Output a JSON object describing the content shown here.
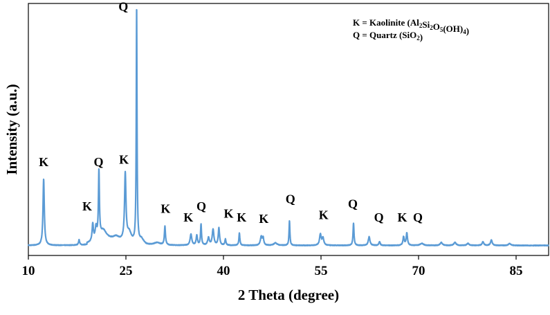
{
  "chart_data": {
    "type": "line",
    "title": "",
    "xlabel": "2 Theta (degree)",
    "ylabel": "Intensity (a.u.)",
    "xlim": [
      10,
      90
    ],
    "ylim": [
      0,
      100
    ],
    "x_ticks": [
      10,
      25,
      40,
      55,
      70,
      85
    ],
    "x_tick_labels": [
      "10",
      "25",
      "40",
      "55",
      "70",
      "85"
    ],
    "grid": false,
    "legend_position": "top-right",
    "legend": [
      {
        "text": "K = Kaolinite (Al2Si2O5(OH)4)",
        "parts": [
          {
            "t": "K = Kaolinite (Al"
          },
          {
            "t": "2",
            "sub": true
          },
          {
            "t": "Si"
          },
          {
            "t": "2",
            "sub": true
          },
          {
            "t": "O"
          },
          {
            "t": "5",
            "sub": true
          },
          {
            "t": "(OH)"
          },
          {
            "t": "4",
            "sub": true
          },
          {
            "t": ")"
          }
        ]
      },
      {
        "text": "Q = Quartz (SiO2)",
        "parts": [
          {
            "t": "Q = Quartz (SiO"
          },
          {
            "t": "2",
            "sub": true
          },
          {
            "t": ")"
          }
        ]
      }
    ],
    "line_color": "#5b9bd5",
    "baseline": 1.8,
    "peaks": [
      {
        "x": 12.35,
        "height": 27,
        "width": 0.12
      },
      {
        "x": 17.8,
        "height": 2.2,
        "width": 0.1
      },
      {
        "x": 19.9,
        "height": 7,
        "width": 0.12
      },
      {
        "x": 20.4,
        "height": 5,
        "width": 0.15
      },
      {
        "x": 20.85,
        "height": 27,
        "width": 0.09
      },
      {
        "x": 21.5,
        "height": 4,
        "width": 0.6
      },
      {
        "x": 23.5,
        "height": 1.3,
        "width": 0.5
      },
      {
        "x": 24.9,
        "height": 27,
        "width": 0.13
      },
      {
        "x": 25.5,
        "height": 4,
        "width": 0.4
      },
      {
        "x": 26.65,
        "height": 96,
        "width": 0.07
      },
      {
        "x": 27.4,
        "height": 2,
        "width": 0.4
      },
      {
        "x": 29.8,
        "height": 1,
        "width": 0.6
      },
      {
        "x": 31.0,
        "height": 7.5,
        "width": 0.1
      },
      {
        "x": 35.0,
        "height": 4.5,
        "width": 0.15
      },
      {
        "x": 35.9,
        "height": 4,
        "width": 0.12
      },
      {
        "x": 36.55,
        "height": 8.5,
        "width": 0.09
      },
      {
        "x": 37.7,
        "height": 3,
        "width": 0.15
      },
      {
        "x": 38.4,
        "height": 6.5,
        "width": 0.15
      },
      {
        "x": 39.3,
        "height": 7,
        "width": 0.12
      },
      {
        "x": 40.3,
        "height": 2.5,
        "width": 0.1
      },
      {
        "x": 42.45,
        "height": 5,
        "width": 0.09
      },
      {
        "x": 45.8,
        "height": 3.5,
        "width": 0.15
      },
      {
        "x": 46.1,
        "height": 3,
        "width": 0.12
      },
      {
        "x": 48.0,
        "height": 1,
        "width": 0.3
      },
      {
        "x": 50.15,
        "height": 10,
        "width": 0.08
      },
      {
        "x": 54.9,
        "height": 4.5,
        "width": 0.15
      },
      {
        "x": 55.3,
        "height": 3,
        "width": 0.15
      },
      {
        "x": 60.0,
        "height": 9,
        "width": 0.09
      },
      {
        "x": 62.4,
        "height": 3.5,
        "width": 0.15
      },
      {
        "x": 64.0,
        "height": 1.5,
        "width": 0.12
      },
      {
        "x": 67.7,
        "height": 3.5,
        "width": 0.12
      },
      {
        "x": 68.2,
        "height": 5,
        "width": 0.12
      },
      {
        "x": 70.5,
        "height": 0.8,
        "width": 0.3
      },
      {
        "x": 73.5,
        "height": 1.2,
        "width": 0.2
      },
      {
        "x": 75.6,
        "height": 1.2,
        "width": 0.2
      },
      {
        "x": 77.6,
        "height": 0.8,
        "width": 0.2
      },
      {
        "x": 79.9,
        "height": 1.5,
        "width": 0.15
      },
      {
        "x": 81.2,
        "height": 2.2,
        "width": 0.15
      },
      {
        "x": 84.0,
        "height": 0.8,
        "width": 0.2
      }
    ],
    "annotations": [
      {
        "label": "K",
        "x": 12.35,
        "y": 34
      },
      {
        "label": "Q",
        "x": 20.8,
        "y": 34
      },
      {
        "label": "K",
        "x": 24.7,
        "y": 35
      },
      {
        "label": "Q",
        "x": 24.6,
        "y": 97
      },
      {
        "label": "K",
        "x": 19.05,
        "y": 16
      },
      {
        "label": "K",
        "x": 31.1,
        "y": 15
      },
      {
        "label": "K",
        "x": 34.6,
        "y": 11.5
      },
      {
        "label": "Q",
        "x": 36.6,
        "y": 16
      },
      {
        "label": "K",
        "x": 40.8,
        "y": 13
      },
      {
        "label": "K",
        "x": 42.8,
        "y": 11.5
      },
      {
        "label": "K",
        "x": 46.2,
        "y": 11
      },
      {
        "label": "Q",
        "x": 50.3,
        "y": 19
      },
      {
        "label": "K",
        "x": 55.4,
        "y": 12.5
      },
      {
        "label": "Q",
        "x": 59.9,
        "y": 17
      },
      {
        "label": "Q",
        "x": 63.9,
        "y": 11.5
      },
      {
        "label": "K",
        "x": 67.5,
        "y": 11.5
      },
      {
        "label": "Q",
        "x": 69.9,
        "y": 11.5
      }
    ]
  }
}
